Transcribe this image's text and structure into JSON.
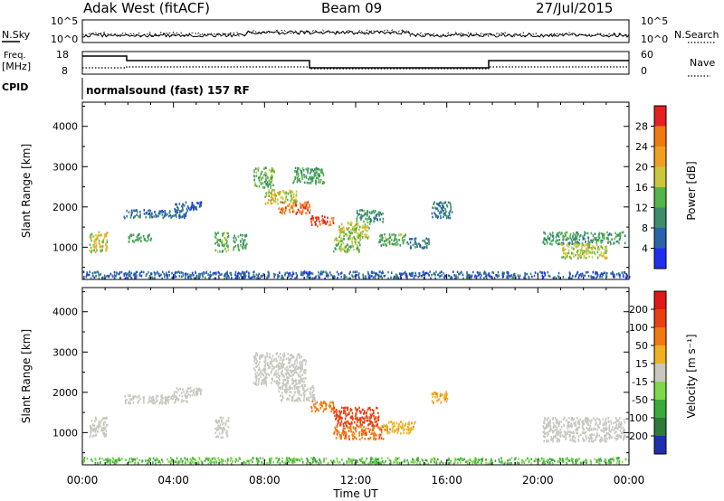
{
  "header": {
    "station": "Adak West (fitACF)",
    "beam": "Beam 09",
    "date": "27/Jul/2015"
  },
  "panels": {
    "noise": {
      "left_label": "N.Sky",
      "right_label": "N.Search",
      "left_ticks": [
        "10^5",
        "10^0"
      ],
      "right_ticks": [
        "10^5",
        "10^0"
      ]
    },
    "freq": {
      "left_label_lines": [
        "Freq.",
        "[MHz]"
      ],
      "right_label": "Nave",
      "left_ticks": [
        "18",
        "8"
      ],
      "right_ticks": [
        "60",
        "0"
      ]
    },
    "cpid": {
      "label": "CPID",
      "text": "normalsound (fast) 157 RF"
    }
  },
  "x_axis": {
    "label": "Time UT",
    "ticks": [
      "00:00",
      "04:00",
      "08:00",
      "12:00",
      "16:00",
      "20:00",
      "00:00"
    ]
  },
  "power_colorbar": {
    "label": "Power [dB]",
    "ticks": [
      "4",
      "8",
      "12",
      "16",
      "20",
      "24",
      "28"
    ],
    "colors": [
      "#1f2ff0",
      "#2a64a8",
      "#3d8c6a",
      "#53b54a",
      "#c9c83a",
      "#f0a020",
      "#f07a10",
      "#e62020"
    ]
  },
  "velocity_colorbar": {
    "label": "Velocity [m s⁻¹]",
    "ticks": [
      "200",
      "100",
      "50",
      "15",
      "-15",
      "-50",
      "-100",
      "-200"
    ],
    "colors": [
      "#1f2fb0",
      "#2e7a3a",
      "#3aaa3a",
      "#7dd84a",
      "#c8c8c0",
      "#f0b020",
      "#f07a10",
      "#e84010",
      "#e01818"
    ]
  },
  "chart_data": [
    {
      "type": "heatmap",
      "title": "Power",
      "ylabel": "Slant Range [km]",
      "xlabel": "Time UT",
      "xlim": [
        0,
        24
      ],
      "ylim": [
        200,
        4600
      ],
      "yticks": [
        1000,
        2000,
        3000,
        4000
      ],
      "clim": [
        0,
        32
      ],
      "patches": [
        {
          "t": [
            0.3,
            1.1
          ],
          "r": [
            900,
            1400
          ],
          "val": 18
        },
        {
          "t": [
            1.8,
            4.6
          ],
          "r": [
            1750,
            1950
          ],
          "val": 7
        },
        {
          "t": [
            4.0,
            5.2
          ],
          "r": [
            1950,
            2150
          ],
          "val": 6
        },
        {
          "t": [
            2.0,
            3.0
          ],
          "r": [
            1150,
            1350
          ],
          "val": 12
        },
        {
          "t": [
            5.8,
            6.4
          ],
          "r": [
            900,
            1400
          ],
          "val": 14
        },
        {
          "t": [
            6.6,
            7.2
          ],
          "r": [
            950,
            1350
          ],
          "val": 12
        },
        {
          "t": [
            7.5,
            8.4
          ],
          "r": [
            2500,
            3000
          ],
          "val": 14
        },
        {
          "t": [
            8.0,
            9.4
          ],
          "r": [
            2100,
            2450
          ],
          "val": 18
        },
        {
          "t": [
            8.6,
            10.0
          ],
          "r": [
            1850,
            2150
          ],
          "val": 26
        },
        {
          "t": [
            9.2,
            10.6
          ],
          "r": [
            2600,
            3000
          ],
          "val": 12
        },
        {
          "t": [
            10.0,
            11.0
          ],
          "r": [
            1550,
            1800
          ],
          "val": 29
        },
        {
          "t": [
            11.2,
            12.6
          ],
          "r": [
            1250,
            1650
          ],
          "val": 17
        },
        {
          "t": [
            11.0,
            12.2
          ],
          "r": [
            900,
            1250
          ],
          "val": 15
        },
        {
          "t": [
            12.0,
            13.2
          ],
          "r": [
            1650,
            1950
          ],
          "val": 10
        },
        {
          "t": [
            13.0,
            14.2
          ],
          "r": [
            1050,
            1350
          ],
          "val": 13
        },
        {
          "t": [
            14.2,
            15.2
          ],
          "r": [
            1000,
            1250
          ],
          "val": 8
        },
        {
          "t": [
            15.3,
            16.2
          ],
          "r": [
            1750,
            2150
          ],
          "val": 8
        },
        {
          "t": [
            20.2,
            23.8
          ],
          "r": [
            1100,
            1400
          ],
          "val": 11
        },
        {
          "t": [
            21.0,
            23.0
          ],
          "r": [
            750,
            1100
          ],
          "val": 17
        },
        {
          "t": [
            0.0,
            24.0
          ],
          "r": [
            250,
            420
          ],
          "val": 6
        }
      ]
    },
    {
      "type": "heatmap",
      "title": "Velocity",
      "ylabel": "Slant Range [km]",
      "xlabel": "Time UT",
      "xlim": [
        0,
        24
      ],
      "ylim": [
        200,
        4600
      ],
      "yticks": [
        1000,
        2000,
        3000,
        4000
      ],
      "clim": [
        -250,
        250
      ],
      "patches": [
        {
          "t": [
            0.3,
            1.1
          ],
          "r": [
            900,
            1400
          ],
          "val": 0
        },
        {
          "t": [
            1.8,
            4.6
          ],
          "r": [
            1750,
            1950
          ],
          "val": 0
        },
        {
          "t": [
            4.0,
            5.2
          ],
          "r": [
            1950,
            2150
          ],
          "val": 0
        },
        {
          "t": [
            5.8,
            6.4
          ],
          "r": [
            900,
            1400
          ],
          "val": 0
        },
        {
          "t": [
            7.5,
            9.8
          ],
          "r": [
            2200,
            3000
          ],
          "val": 0
        },
        {
          "t": [
            8.6,
            10.2
          ],
          "r": [
            1800,
            2200
          ],
          "val": 0
        },
        {
          "t": [
            10.0,
            11.0
          ],
          "r": [
            1550,
            1800
          ],
          "val": -80
        },
        {
          "t": [
            11.0,
            13.0
          ],
          "r": [
            1200,
            1650
          ],
          "val": -150
        },
        {
          "t": [
            11.0,
            13.2
          ],
          "r": [
            850,
            1200
          ],
          "val": -90
        },
        {
          "t": [
            13.2,
            14.6
          ],
          "r": [
            1000,
            1300
          ],
          "val": -40
        },
        {
          "t": [
            15.3,
            16.0
          ],
          "r": [
            1750,
            2050
          ],
          "val": -40
        },
        {
          "t": [
            20.2,
            23.8
          ],
          "r": [
            800,
            1400
          ],
          "val": 0
        },
        {
          "t": [
            0.0,
            24.0
          ],
          "r": [
            250,
            400
          ],
          "val": 30
        }
      ]
    }
  ]
}
